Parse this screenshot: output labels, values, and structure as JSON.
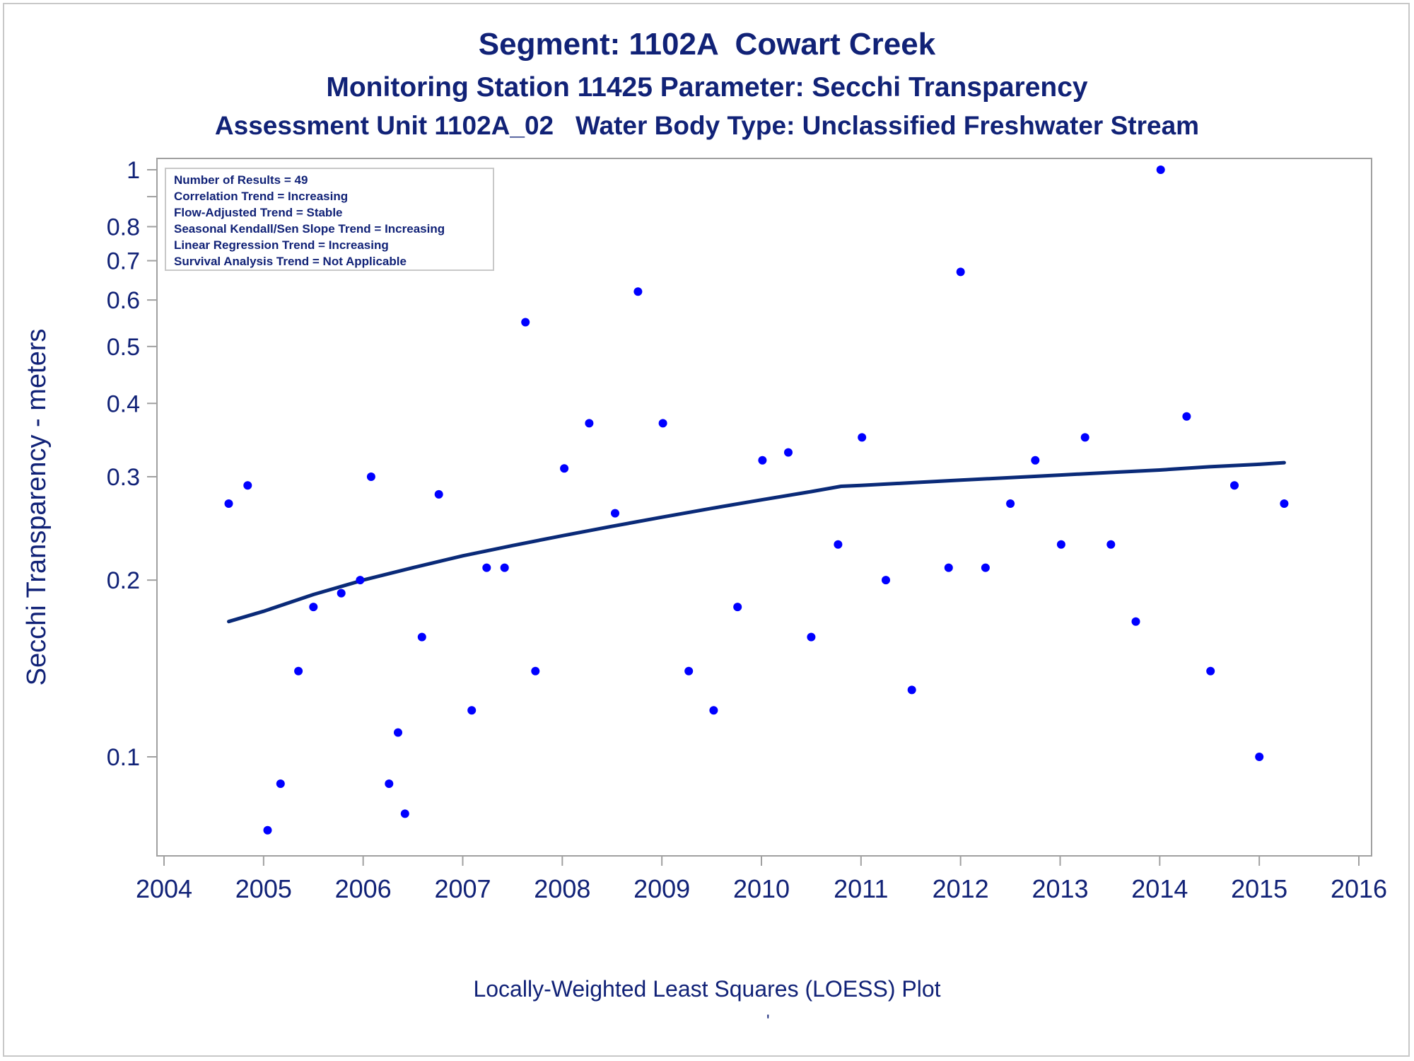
{
  "titles": {
    "line1": "Segment: 1102A  Cowart Creek",
    "line2": "Monitoring Station 11425 Parameter: Secchi Transparency",
    "line3": "Assessment Unit 1102A_02   Water Body Type: Unclassified Freshwater Stream"
  },
  "footnote": "Locally-Weighted Least Squares (LOESS) Plot",
  "footnote_mark": "'",
  "stats_box": [
    "Number of Results = 49",
    "Correlation Trend = Increasing",
    "Flow-Adjusted Trend = Stable",
    "Seasonal Kendall/Sen Slope Trend = Increasing",
    "Linear Regression Trend = Increasing",
    "Survival Analysis Trend = Not Applicable"
  ],
  "colors": {
    "text": "#112277",
    "points": "#0000ff",
    "loess_line": "#0a2a78",
    "axis": "#a0a0a0"
  },
  "chart_data": {
    "type": "scatter",
    "ylabel": "Secchi Transparency - meters",
    "yscale": "log",
    "xlim": [
      2004,
      2016
    ],
    "ylim": [
      0.075,
      1.02
    ],
    "x_ticks": [
      2004,
      2005,
      2006,
      2007,
      2008,
      2009,
      2010,
      2011,
      2012,
      2013,
      2014,
      2015,
      2016
    ],
    "y_ticks": [
      {
        "value": 0.1,
        "label": "0.1"
      },
      {
        "value": 0.2,
        "label": "0.2"
      },
      {
        "value": 0.3,
        "label": "0.3"
      },
      {
        "value": 0.4,
        "label": "0.4"
      },
      {
        "value": 0.5,
        "label": "0.5"
      },
      {
        "value": 0.6,
        "label": "0.6"
      },
      {
        "value": 0.7,
        "label": "0.7"
      },
      {
        "value": 0.8,
        "label": "0.8"
      },
      {
        "value": 0.9,
        "label": ""
      },
      {
        "value": 1.0,
        "label": "1"
      }
    ],
    "grid": false,
    "legend": "none",
    "series": [
      {
        "name": "Secchi Transparency",
        "kind": "points",
        "points": [
          [
            2004.65,
            0.27
          ],
          [
            2004.84,
            0.29
          ],
          [
            2005.04,
            0.075
          ],
          [
            2005.17,
            0.09
          ],
          [
            2005.35,
            0.14
          ],
          [
            2005.5,
            0.18
          ],
          [
            2005.78,
            0.19
          ],
          [
            2005.97,
            0.2
          ],
          [
            2006.08,
            0.3
          ],
          [
            2006.26,
            0.09
          ],
          [
            2006.35,
            0.11
          ],
          [
            2006.42,
            0.08
          ],
          [
            2006.59,
            0.16
          ],
          [
            2006.76,
            0.28
          ],
          [
            2007.09,
            0.12
          ],
          [
            2007.24,
            0.21
          ],
          [
            2007.42,
            0.21
          ],
          [
            2007.63,
            0.55
          ],
          [
            2007.73,
            0.14
          ],
          [
            2008.02,
            0.31
          ],
          [
            2008.27,
            0.37
          ],
          [
            2008.53,
            0.26
          ],
          [
            2008.76,
            0.62
          ],
          [
            2009.01,
            0.37
          ],
          [
            2009.27,
            0.14
          ],
          [
            2009.52,
            0.12
          ],
          [
            2009.76,
            0.18
          ],
          [
            2010.01,
            0.32
          ],
          [
            2010.27,
            0.33
          ],
          [
            2010.5,
            0.16
          ],
          [
            2010.77,
            0.23
          ],
          [
            2011.01,
            0.35
          ],
          [
            2011.25,
            0.2
          ],
          [
            2011.51,
            0.13
          ],
          [
            2011.88,
            0.21
          ],
          [
            2012.0,
            0.67
          ],
          [
            2012.25,
            0.21
          ],
          [
            2012.5,
            0.27
          ],
          [
            2012.75,
            0.32
          ],
          [
            2013.01,
            0.23
          ],
          [
            2013.25,
            0.35
          ],
          [
            2013.51,
            0.23
          ],
          [
            2013.76,
            0.17
          ],
          [
            2014.01,
            1.0
          ],
          [
            2014.27,
            0.38
          ],
          [
            2014.51,
            0.14
          ],
          [
            2014.75,
            0.29
          ],
          [
            2015.0,
            0.1
          ],
          [
            2015.25,
            0.27
          ]
        ]
      },
      {
        "name": "LOESS",
        "kind": "line",
        "points": [
          [
            2004.65,
            0.17
          ],
          [
            2005.0,
            0.177
          ],
          [
            2005.5,
            0.189
          ],
          [
            2006.0,
            0.2
          ],
          [
            2006.5,
            0.21
          ],
          [
            2007.0,
            0.22
          ],
          [
            2007.5,
            0.229
          ],
          [
            2008.0,
            0.238
          ],
          [
            2008.5,
            0.247
          ],
          [
            2009.0,
            0.256
          ],
          [
            2009.5,
            0.265
          ],
          [
            2010.0,
            0.274
          ],
          [
            2010.5,
            0.283
          ],
          [
            2010.8,
            0.289
          ],
          [
            2011.0,
            0.29
          ],
          [
            2011.5,
            0.293
          ],
          [
            2012.0,
            0.296
          ],
          [
            2012.5,
            0.299
          ],
          [
            2013.0,
            0.302
          ],
          [
            2013.5,
            0.305
          ],
          [
            2014.0,
            0.308
          ],
          [
            2014.5,
            0.312
          ],
          [
            2015.0,
            0.315
          ],
          [
            2015.25,
            0.317
          ]
        ]
      }
    ]
  }
}
